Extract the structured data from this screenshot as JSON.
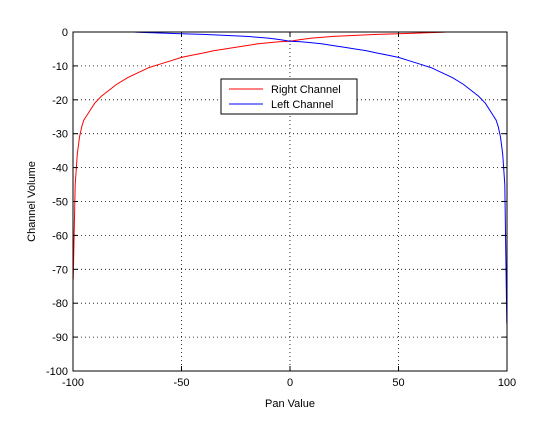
{
  "chart_data": {
    "type": "line",
    "title": "",
    "xlabel": "Pan Value",
    "ylabel": "Channel Volume",
    "xlim": [
      -100,
      100
    ],
    "ylim": [
      -100,
      0
    ],
    "xticks": [
      -100,
      -50,
      0,
      50,
      100
    ],
    "xtick_labels": [
      "-100",
      "-50",
      "0",
      "50",
      "100"
    ],
    "yticks": [
      0,
      -10,
      -20,
      -30,
      -40,
      -50,
      -60,
      -70,
      -80,
      -90,
      -100
    ],
    "ytick_labels": [
      "0",
      "-10",
      "-20",
      "-30",
      "-40",
      "-50",
      "-60",
      "-70",
      "-80",
      "-90",
      "-100"
    ],
    "grid": true,
    "legend_position": "upper-center",
    "series": [
      {
        "name": "Right Channel",
        "color": "#ff0000",
        "x": [
          -99.9,
          -99,
          -98,
          -97,
          -96,
          -95,
          -93,
          -90,
          -87,
          -85,
          -80,
          -75,
          -70,
          -65,
          -60,
          -55,
          -50,
          -45,
          -40,
          -35,
          -30,
          -25,
          -20,
          -15,
          -10,
          -5,
          0,
          5,
          10,
          20,
          30,
          40,
          50,
          60,
          70,
          72
        ],
        "y": [
          -73,
          -45,
          -36,
          -31,
          -28,
          -26,
          -24,
          -21,
          -19,
          -18,
          -15.5,
          -13.5,
          -12,
          -10.5,
          -9.5,
          -8.5,
          -7.5,
          -6.8,
          -6.2,
          -5.5,
          -5,
          -4.5,
          -4,
          -3.5,
          -3.2,
          -2.9,
          -2.7,
          -2.2,
          -1.8,
          -1.3,
          -1,
          -0.7,
          -0.5,
          -0.3,
          -0.1,
          0
        ]
      },
      {
        "name": "Left Channel",
        "color": "#0000ff",
        "x": [
          -72,
          -70,
          -60,
          -50,
          -40,
          -30,
          -20,
          -10,
          -5,
          0,
          5,
          10,
          15,
          20,
          25,
          30,
          35,
          40,
          45,
          50,
          55,
          60,
          65,
          70,
          75,
          80,
          85,
          87,
          90,
          93,
          95,
          96,
          97,
          98,
          99,
          99.9
        ],
        "y": [
          0,
          -0.1,
          -0.3,
          -0.5,
          -0.7,
          -1,
          -1.3,
          -1.8,
          -2.2,
          -2.7,
          -2.9,
          -3.2,
          -3.5,
          -4,
          -4.5,
          -5,
          -5.5,
          -6.2,
          -6.8,
          -7.5,
          -8.5,
          -9.5,
          -10.5,
          -12,
          -13.5,
          -15.5,
          -18,
          -19,
          -21,
          -24,
          -26,
          -28,
          -31,
          -36,
          -45,
          -86
        ]
      }
    ]
  }
}
